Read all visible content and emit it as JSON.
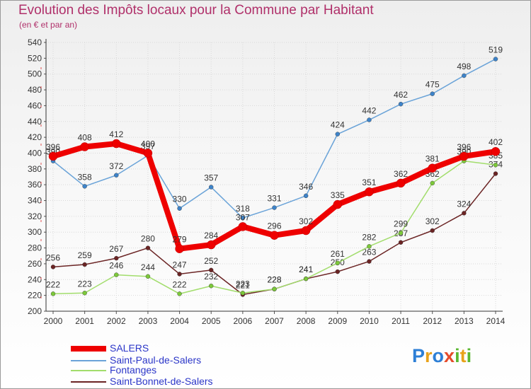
{
  "title": "Evolution des Impôts locaux pour la Commune par Habitant",
  "subtitle": "(en € et par an)",
  "logo": {
    "text": "Proxiti",
    "letters": [
      {
        "ch": "P",
        "color": "#2d7fd6"
      },
      {
        "ch": "r",
        "color": "#e8a21a"
      },
      {
        "ch": "o",
        "color": "#2d7fd6"
      },
      {
        "ch": "x",
        "color": "#e54b2b"
      },
      {
        "ch": "i",
        "color": "#5bb832"
      },
      {
        "ch": "t",
        "color": "#e8a21a"
      },
      {
        "ch": "i",
        "color": "#5bb832"
      }
    ]
  },
  "chart_data": {
    "type": "line",
    "x": [
      2000,
      2001,
      2002,
      2003,
      2004,
      2005,
      2006,
      2007,
      2008,
      2009,
      2010,
      2011,
      2012,
      2013,
      2014
    ],
    "ylim": [
      200,
      540
    ],
    "yticks": [
      200,
      220,
      240,
      260,
      280,
      300,
      320,
      340,
      360,
      380,
      400,
      420,
      440,
      460,
      480,
      500,
      520,
      540
    ],
    "grid": true,
    "legend_position": "bottom-left",
    "series": [
      {
        "name": "Saint-Bonnet-de-Salers",
        "color": "#6b2424",
        "marker": "#6b2424",
        "values": [
          256,
          259,
          267,
          280,
          247,
          252,
          221,
          228,
          241,
          250,
          263,
          287,
          302,
          324,
          374
        ],
        "labels": [
          "256",
          "259",
          "267",
          "280",
          "247",
          "252",
          "221",
          "228",
          "241",
          "250",
          "263",
          "287",
          "302",
          "324",
          "374"
        ]
      },
      {
        "name": "Fontanges",
        "color": "#a2dd6c",
        "marker": "#7cc83a",
        "values": [
          222,
          223,
          246,
          244,
          222,
          232,
          223,
          228,
          241,
          261,
          282,
          299,
          362,
          390,
          385
        ],
        "labels": [
          "222",
          "223",
          "246",
          "244",
          "222",
          "232",
          "223",
          "228",
          "241",
          "261",
          "282",
          "299",
          "362",
          "390",
          "385"
        ]
      },
      {
        "name": "Saint-Paul-de-Salers",
        "color": "#6aa3d8",
        "marker": "#3d83c9",
        "values": [
          390,
          358,
          372,
          397,
          330,
          357,
          318,
          331,
          346,
          424,
          442,
          462,
          475,
          498,
          519
        ],
        "labels": [
          "390",
          "358",
          "372",
          "397",
          "330",
          "357",
          "318",
          "331",
          "346",
          "424",
          "442",
          "462",
          "475",
          "498",
          "519"
        ]
      },
      {
        "name": "SALERS",
        "color": "#ee0000",
        "marker": "#ee0000",
        "values": [
          396,
          408,
          412,
          400,
          279,
          284,
          307,
          296,
          302,
          335,
          351,
          362,
          381,
          396,
          402
        ],
        "labels": [
          "396",
          "408",
          "412",
          "400",
          "279",
          "284",
          "307",
          "296",
          "302",
          "335",
          "351",
          "362",
          "381",
          "396",
          "402"
        ]
      }
    ],
    "legend": [
      "SALERS",
      "Saint-Paul-de-Salers",
      "Fontanges",
      "Saint-Bonnet-de-Salers"
    ]
  }
}
